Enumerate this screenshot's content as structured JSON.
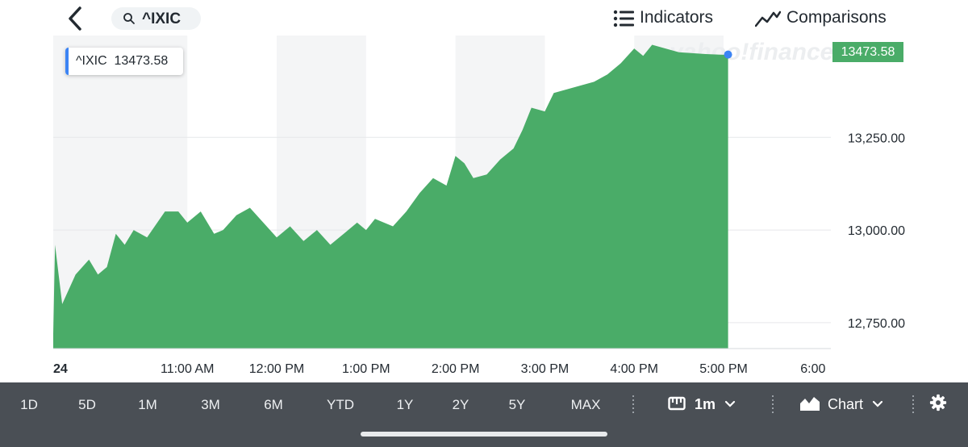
{
  "header": {
    "search_symbol": "^IXIC",
    "indicators_label": "Indicators",
    "comparisons_label": "Comparisons",
    "back_icon": "chevron-left-icon",
    "search_icon": "search-icon",
    "indicators_icon": "list-icon",
    "comparisons_icon": "line-chart-icon"
  },
  "tooltip": {
    "symbol": "^IXIC",
    "value": "13473.58"
  },
  "last_price": "13473.58",
  "watermark": "yahoo!finance",
  "timeframes": [
    "1D",
    "5D",
    "1M",
    "3M",
    "6M",
    "YTD",
    "1Y",
    "2Y",
    "5Y",
    "MAX"
  ],
  "active_timeframe": "1D",
  "interval_label": "1m",
  "chart_type_label": "Chart",
  "colors": {
    "area": "#4aac68",
    "marker": "#3c84f4",
    "bar": "#4a4f55",
    "band": "#f4f5f6"
  },
  "chart_data": {
    "type": "area",
    "title": "",
    "xlabel": "",
    "ylabel": "",
    "x_ticks": [
      "24",
      "11:00 AM",
      "12:00 PM",
      "1:00 PM",
      "2:00 PM",
      "3:00 PM",
      "4:00 PM",
      "5:00 PM",
      "6:00"
    ],
    "y_ticks": [
      "13,250.00",
      "13,000.00",
      "12,750.00"
    ],
    "y_tick_values": [
      13250,
      13000,
      12750
    ],
    "ylim": [
      12680,
      13525
    ],
    "xlim_hours": [
      9.5,
      18.2
    ],
    "grid": "horizontal",
    "series": [
      {
        "x": [
          9.5,
          9.52,
          9.6,
          9.75,
          9.9,
          10.0,
          10.1,
          10.2,
          10.3,
          10.4,
          10.55,
          10.75,
          10.9,
          11.0,
          11.15,
          11.3,
          11.4,
          11.55,
          11.7,
          11.85,
          12.0,
          12.15,
          12.3,
          12.45,
          12.6,
          12.75,
          12.9,
          13.0,
          13.1,
          13.2,
          13.3,
          13.45,
          13.6,
          13.75,
          13.9,
          14.0,
          14.1,
          14.2,
          14.35,
          14.5,
          14.65,
          14.75,
          14.85,
          15.0,
          15.1,
          15.25,
          15.4,
          15.55,
          15.7,
          15.85,
          16.0,
          16.1,
          16.2,
          16.5,
          16.8,
          17.0,
          17.05
        ],
        "values": [
          12720,
          12960,
          12800,
          12880,
          12920,
          12880,
          12900,
          12990,
          12960,
          13000,
          12980,
          13050,
          13050,
          13020,
          13050,
          12990,
          13000,
          13040,
          13060,
          13020,
          12980,
          13010,
          12970,
          13000,
          12960,
          12990,
          13020,
          13000,
          13030,
          13020,
          13010,
          13050,
          13100,
          13140,
          13120,
          13200,
          13180,
          13140,
          13150,
          13190,
          13220,
          13270,
          13330,
          13320,
          13370,
          13380,
          13390,
          13400,
          13420,
          13450,
          13490,
          13470,
          13500,
          13480,
          13475,
          13473,
          13473.58
        ]
      }
    ]
  }
}
